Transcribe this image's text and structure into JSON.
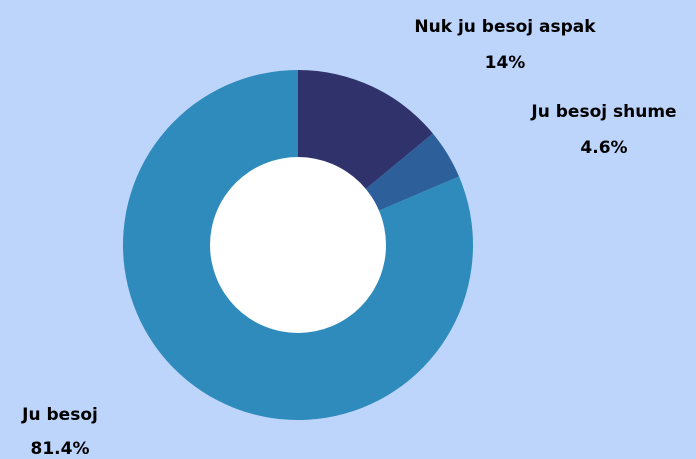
{
  "chart_data": {
    "type": "pie",
    "style": "donut",
    "title": "",
    "legend": "none",
    "slices": [
      {
        "label": "Nuk ju besoj aspak",
        "value": 14,
        "value_label": "14%",
        "color": "#30336b"
      },
      {
        "label": "Ju besoj shume",
        "value": 4.6,
        "value_label": "4.6%",
        "color": "#2d5f9a"
      },
      {
        "label": "Ju besoj",
        "value": 81.4,
        "value_label": "81.4%",
        "color": "#2e8bbb"
      }
    ],
    "background_color": "#bdd4fb",
    "hole_color": "#ffffff"
  }
}
